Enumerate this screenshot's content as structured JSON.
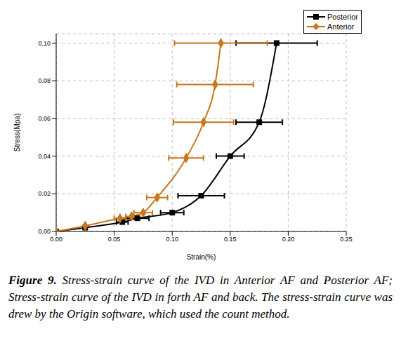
{
  "chart_data": {
    "type": "line",
    "x_label": "Strain(%)",
    "y_label": "Stress(Mpa)",
    "caption_label": "Figure 9.",
    "caption": "Stress-strain curve of the IVD in Anterior AF and Posterior AF; Stress-strain curve of the IVD in forth AF and back. The stress-strain curve was drew by the Origin software, which used the count method.",
    "xlim": [
      0,
      0.25
    ],
    "xticks": [
      {
        "value": 0,
        "label": "0.00"
      },
      {
        "value": 0.05,
        "label": "0.05"
      },
      {
        "value": 0.1,
        "label": "0.10"
      },
      {
        "value": 0.15,
        "label": "0.15"
      },
      {
        "value": 0.2,
        "label": "0.20"
      },
      {
        "value": 0.25,
        "label": "0.25"
      }
    ],
    "ylim": [
      0,
      0.105
    ],
    "yticks": [
      {
        "value": 0,
        "label": "0.00"
      },
      {
        "value": 0.02,
        "label": "0.02"
      },
      {
        "value": 0.04,
        "label": "0.04"
      },
      {
        "value": 0.06,
        "label": "0.06"
      },
      {
        "value": 0.08,
        "label": "0.08"
      },
      {
        "value": 0.1,
        "label": "0.10"
      }
    ],
    "grid": true,
    "legend": "top right",
    "series": [
      {
        "name": "Posterior",
        "color": "#000000",
        "marker": "square",
        "x": [
          0,
          0.025,
          0.057,
          0.07,
          0.1,
          0.125,
          0.15,
          0.175,
          0.19
        ],
        "values": [
          0,
          0.002,
          0.005,
          0.007,
          0.01,
          0.019,
          0.04,
          0.058,
          0.1
        ],
        "x_error": [
          0,
          0,
          0.005,
          0.01,
          0.01,
          0.02,
          0.012,
          0.02,
          0.035
        ]
      },
      {
        "name": "Anterior",
        "color": "#c8781e",
        "marker": "diamond",
        "x": [
          0,
          0.025,
          0.055,
          0.065,
          0.075,
          0.087,
          0.112,
          0.127,
          0.137,
          0.142
        ],
        "values": [
          0,
          0.003,
          0.007,
          0.008,
          0.01,
          0.018,
          0.039,
          0.058,
          0.078,
          0.1
        ],
        "x_error": [
          0,
          0,
          0.005,
          0.005,
          0.008,
          0.009,
          0.015,
          0.026,
          0.033,
          0.04
        ]
      }
    ]
  }
}
